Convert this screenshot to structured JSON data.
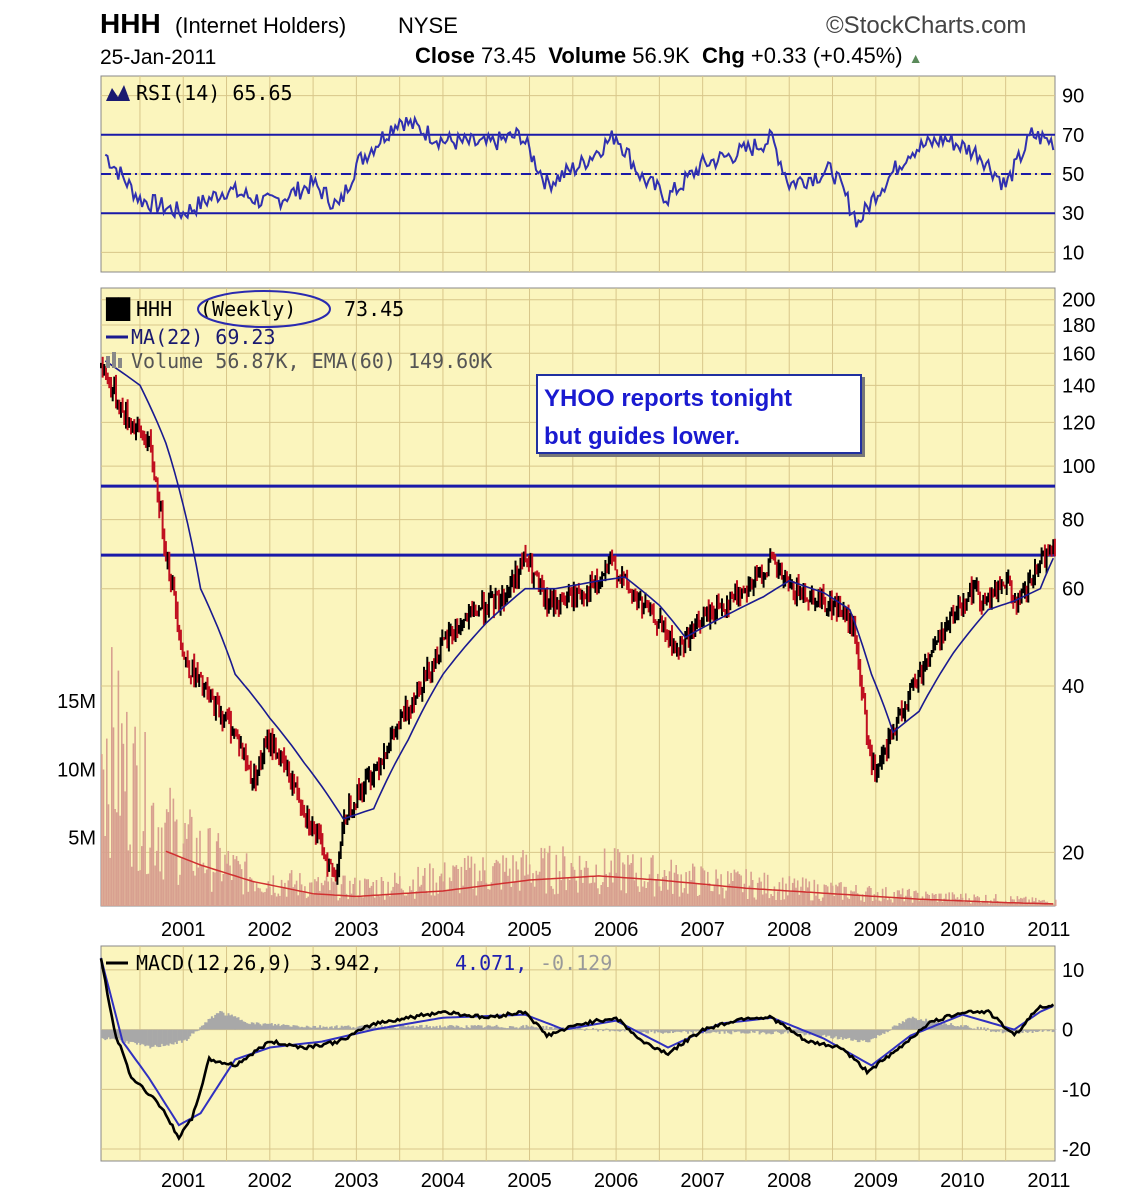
{
  "header": {
    "symbol": "HHH",
    "name": "(Internet Holders)",
    "exchange": "NYSE",
    "brand": "©StockCharts.com",
    "date": "25-Jan-2011",
    "close_label": "Close",
    "close_value": "73.45",
    "volume_label": "Volume",
    "volume_value": "56.9K",
    "chg_label": "Chg",
    "chg_value": "+0.33 (+0.45%)"
  },
  "rsi_panel": {
    "legend": "RSI(14) 65.65",
    "ticks": [
      "90",
      "70",
      "50",
      "30",
      "10"
    ]
  },
  "price_panel": {
    "legend_symbol": "HHH",
    "legend_period": "(Weekly)",
    "legend_close": "73.45",
    "legend_ma": "MA(22) 69.23",
    "legend_volume": "Volume 56.87K, EMA(60) 149.60K",
    "ticks": [
      "200",
      "180",
      "160",
      "140",
      "120",
      "100",
      "80",
      "60",
      "40",
      "20"
    ],
    "volume_ticks": [
      "15M",
      "10M",
      "5M"
    ],
    "annotation_line1": "YHOO reports tonight",
    "annotation_line2": "but guides lower."
  },
  "macd_panel": {
    "legend_name": "MACD(12,26,9)",
    "legend_macd": "3.942,",
    "legend_signal": "4.071,",
    "legend_hist": "-0.129",
    "ticks": [
      "10",
      "0",
      "-10",
      "-20"
    ]
  },
  "x_axis": {
    "years": [
      "2001",
      "2002",
      "2003",
      "2004",
      "2005",
      "2006",
      "2007",
      "2008",
      "2009",
      "2010",
      "2011"
    ]
  },
  "colors": {
    "panel_bg": "#fbf5bd",
    "grid": "#d8c68a",
    "rsi_line": "#3030b0",
    "level_line": "#1a1aa8",
    "up_bar": "#000000",
    "down_bar": "#c01020",
    "ma_line": "#1a1a90",
    "volume_bar": "#d8a090",
    "ema_line": "#d03030",
    "macd_line": "#000000",
    "signal_line": "#3030c0",
    "histogram": "#a8a8a8"
  },
  "chart_data": [
    {
      "type": "line",
      "title": "RSI(14) 65.65",
      "series": [
        {
          "name": "RSI(14)",
          "x": [
            2000.1,
            2000.5,
            2001.0,
            2001.5,
            2002.0,
            2002.5,
            2002.8,
            2003.0,
            2003.5,
            2004.0,
            2004.5,
            2004.9,
            2005.2,
            2005.6,
            2006.0,
            2006.3,
            2006.6,
            2007.0,
            2007.5,
            2007.8,
            2008.0,
            2008.5,
            2008.8,
            2009.0,
            2009.4,
            2009.8,
            2010.2,
            2010.5,
            2010.8,
            2011.07
          ],
          "values": [
            60,
            37,
            30,
            42,
            35,
            45,
            33,
            55,
            78,
            67,
            65,
            70,
            45,
            55,
            70,
            48,
            38,
            55,
            62,
            68,
            45,
            52,
            25,
            40,
            62,
            68,
            60,
            44,
            70,
            66
          ]
        }
      ],
      "ylim": [
        0,
        100
      ],
      "levels": [
        70,
        50,
        30
      ]
    },
    {
      "type": "line",
      "title": "HHH (Weekly) 73.45",
      "series": [
        {
          "name": "HHH",
          "x": [
            2000.05,
            2000.3,
            2000.6,
            2000.8,
            2001.0,
            2001.3,
            2001.6,
            2001.8,
            2002.0,
            2002.3,
            2002.5,
            2002.75,
            2002.9,
            2003.2,
            2003.5,
            2003.8,
            2004.1,
            2004.4,
            2004.7,
            2004.95,
            2005.2,
            2005.5,
            2005.8,
            2005.95,
            2006.2,
            2006.5,
            2006.7,
            2007.0,
            2007.3,
            2007.6,
            2007.8,
            2008.0,
            2008.3,
            2008.6,
            2008.75,
            2008.9,
            2009.0,
            2009.3,
            2009.6,
            2009.9,
            2010.1,
            2010.3,
            2010.5,
            2010.65,
            2010.85,
            2011.07
          ],
          "values": [
            152,
            125,
            110,
            70,
            45,
            38,
            33,
            27,
            32,
            26,
            22,
            18,
            24,
            28,
            34,
            42,
            50,
            55,
            58,
            68,
            56,
            58,
            61,
            67,
            58,
            52,
            46,
            53,
            57,
            62,
            67,
            60,
            58,
            55,
            50,
            32,
            27,
            36,
            45,
            54,
            60,
            57,
            62,
            56,
            64,
            73.45
          ]
        },
        {
          "name": "MA(22)",
          "x": [
            2000.1,
            2000.5,
            2000.8,
            2001.2,
            2001.6,
            2002.0,
            2002.4,
            2002.85,
            2003.2,
            2003.6,
            2004.0,
            2004.5,
            2004.95,
            2005.3,
            2005.8,
            2006.1,
            2006.5,
            2006.8,
            2007.2,
            2007.7,
            2008.0,
            2008.4,
            2008.7,
            2008.95,
            2009.2,
            2009.5,
            2009.9,
            2010.3,
            2010.6,
            2010.9,
            2011.07
          ],
          "values": [
            155,
            140,
            110,
            60,
            42,
            35,
            29,
            23,
            24,
            32,
            42,
            52,
            60,
            60,
            62,
            63,
            56,
            49,
            53,
            58,
            62,
            59,
            55,
            42,
            33,
            36,
            46,
            55,
            57,
            60,
            69.23
          ]
        }
      ],
      "ylim": [
        16,
        210
      ],
      "log_scale": true,
      "horizontal_lines": [
        92,
        69
      ],
      "annotation": "YHOO reports tonight but guides lower."
    },
    {
      "type": "bar",
      "title": "Volume 56.87K, EMA(60) 149.60K",
      "series": [
        {
          "name": "Volume",
          "x": [
            2000.1,
            2000.4,
            2000.7,
            2001.0,
            2001.3,
            2001.6,
            2002.0,
            2002.5,
            2003.0,
            2003.5,
            2004.0,
            2004.5,
            2005.0,
            2005.5,
            2006.0,
            2006.5,
            2007.0,
            2007.5,
            2008.0,
            2008.5,
            2009.0,
            2009.5,
            2010.0,
            2010.5,
            2011.0
          ],
          "values": [
            12000000,
            9000000,
            6000000,
            4500000,
            3500000,
            2500000,
            1800000,
            1400000,
            1300000,
            1600000,
            2000000,
            2400000,
            2600000,
            2700000,
            2500000,
            2200000,
            1800000,
            1600000,
            1300000,
            1100000,
            900000,
            700000,
            600000,
            500000,
            300000
          ]
        },
        {
          "name": "EMA(60)",
          "x": [
            2000.8,
            2001.2,
            2001.8,
            2002.5,
            2003.0,
            2004.0,
            2005.0,
            2005.8,
            2006.5,
            2007.5,
            2008.5,
            2009.5,
            2010.5,
            2011.07
          ],
          "values": [
            4000000,
            3000000,
            1800000,
            900000,
            700000,
            1100000,
            1900000,
            2200000,
            1900000,
            1300000,
            900000,
            500000,
            250000,
            149600
          ]
        }
      ],
      "ylim": [
        0,
        18000000
      ]
    },
    {
      "type": "line",
      "title": "MACD(12,26,9) 3.942, 4.071, -0.129",
      "series": [
        {
          "name": "MACD",
          "x": [
            2000.05,
            2000.2,
            2000.4,
            2000.7,
            2000.95,
            2001.1,
            2001.3,
            2001.6,
            2002.0,
            2002.4,
            2002.8,
            2003.2,
            2003.6,
            2004.0,
            2004.5,
            2004.95,
            2005.2,
            2005.6,
            2006.0,
            2006.3,
            2006.6,
            2007.0,
            2007.5,
            2007.8,
            2008.2,
            2008.6,
            2008.9,
            2009.2,
            2009.6,
            2010.0,
            2010.3,
            2010.6,
            2010.9,
            2011.07
          ],
          "values": [
            12,
            0,
            -8,
            -12,
            -18,
            -15,
            -5,
            -6,
            -2,
            -3,
            -2,
            1,
            2,
            3,
            2,
            3,
            -1,
            1,
            2,
            -2,
            -4,
            0,
            2,
            2,
            -2,
            -3,
            -7,
            -4,
            1,
            3,
            3,
            -1,
            4,
            3.942
          ]
        },
        {
          "name": "Signal",
          "x": [
            2000.05,
            2000.3,
            2000.6,
            2000.95,
            2001.2,
            2001.6,
            2002.0,
            2002.6,
            2003.2,
            2004.0,
            2004.95,
            2005.4,
            2006.0,
            2006.6,
            2007.2,
            2007.8,
            2008.4,
            2008.95,
            2009.4,
            2010.0,
            2010.6,
            2010.9,
            2011.07
          ],
          "values": [
            12,
            -2,
            -8,
            -16,
            -14,
            -5,
            -3,
            -2,
            0,
            2,
            2.5,
            0,
            1.5,
            -3,
            1,
            2,
            -1.5,
            -6,
            -1,
            2.5,
            0,
            3,
            4.071
          ]
        },
        {
          "name": "Histogram",
          "x": [
            2000.2,
            2000.6,
            2001.0,
            2001.4,
            2001.8,
            2002.5,
            2003.5,
            2005.0,
            2006.5,
            2008.0,
            2008.9,
            2009.4,
            2010.5,
            2011.07
          ],
          "values": [
            -1.5,
            -3,
            -2,
            3,
            1,
            0.5,
            0.5,
            0.5,
            -0.5,
            -0.5,
            -2,
            2,
            -0.5,
            -0.129
          ]
        }
      ],
      "ylim": [
        -22,
        14
      ]
    }
  ]
}
